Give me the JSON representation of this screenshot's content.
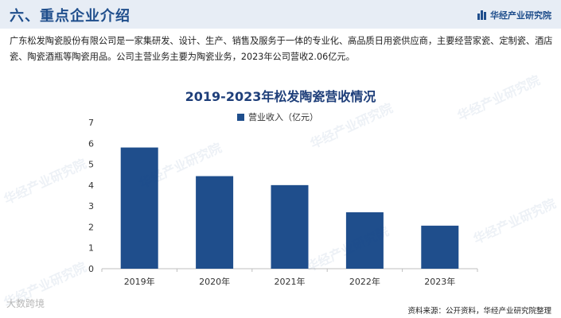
{
  "header": {
    "title": "六、重点企业介绍",
    "brand": "华经产业研究院"
  },
  "intro_text": "广东松发陶瓷股份有限公司是一家集研发、设计、生产、销售及服务于一体的专业化、高品质日用瓷供应商，主要经营家瓷、定制瓷、酒店瓷、陶瓷酒瓶等陶瓷用品。公司主营业务主要为陶瓷业务，2023年公司营收2.06亿元。",
  "watermark": "华经产业研究院",
  "corner_watermark": "大数跨境",
  "source": "资料来源：公开资料，华经产业研究院整理",
  "colors": {
    "accent": "#1f4e8c",
    "bar": "#1f4e8c",
    "title": "#1f3f7a"
  },
  "chart_data": {
    "type": "bar",
    "title": "2019-2023年松发陶瓷营收情况",
    "categories": [
      "2019年",
      "2020年",
      "2021年",
      "2022年",
      "2023年"
    ],
    "series": [
      {
        "name": "营业收入（亿元）",
        "values": [
          5.8,
          4.43,
          4.0,
          2.7,
          2.06
        ]
      }
    ],
    "ylim": [
      0,
      7
    ],
    "yticks": [
      "0",
      "1",
      "2",
      "3",
      "4",
      "5",
      "6",
      "7"
    ],
    "xlabel": "",
    "ylabel": "",
    "grid": false,
    "legend": "top-center"
  }
}
